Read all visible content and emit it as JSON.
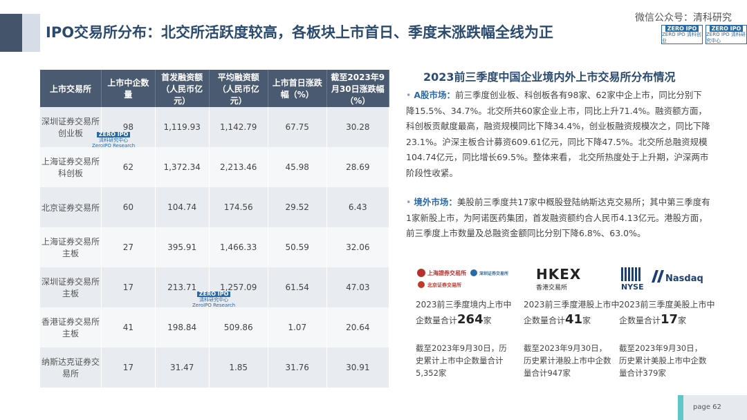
{
  "title": "IPO交易所分布：北交所活跃度较高，各板块上市首日、季度末涨跌幅全线为正",
  "wechat": "微信公众号：清科研究",
  "logos": [
    "ZERO IPO 清科创业",
    "ZERO IPO 清科研究中心"
  ],
  "table": {
    "headers": [
      "上市交易所",
      "上市中企数量",
      "首发融资额（人民币亿元）",
      "平均融资额（人民币亿元）",
      "上市首日涨跌幅（%）",
      "截至2023年9月30日涨跌幅（%）"
    ],
    "rows": [
      [
        "深圳证券交易所创业板",
        "98",
        "1,119.93",
        "1,142.79",
        "67.75",
        "30.28"
      ],
      [
        "上海证券交易所科创板",
        "62",
        "1,372.34",
        "2,213.46",
        "45.98",
        "28.69"
      ],
      [
        "北京证券交易所",
        "60",
        "104.74",
        "174.56",
        "29.52",
        "6.43"
      ],
      [
        "上海证券交易所主板",
        "27",
        "395.91",
        "1,466.33",
        "50.59",
        "32.06"
      ],
      [
        "深圳证券交易所主板",
        "17",
        "213.71",
        "1,257.09",
        "61.54",
        "47.03"
      ],
      [
        "香港证券交易所主板",
        "41",
        "198.84",
        "509.86",
        "1.07",
        "20.64"
      ],
      [
        "纳斯达克证券交易所",
        "17",
        "31.47",
        "1.85",
        "31.76",
        "30.91"
      ]
    ]
  },
  "watermark": {
    "brand": "ZERO IPO",
    "name": "清科研究中心",
    "sub": "ZeroIPO Research"
  },
  "right": {
    "heading": "2023前三季度中国企业境内外上市交易所分布情况",
    "a_label": "A股市场：",
    "a_text": "前三季度创业板、科创板各有98家、62家中企上市，同比分别下降15.5%、34.7%。北交所共60家企业上市，同比上升71.4%。融资额方面，科创板贡献度最高，融资规模同比下降34.4%，创业板融资规模次之，同比下降23.1%。沪深主板合计募资609.61亿元，同比下降47.5%。北交所总融资规模104.74亿元，同比增长69.5%。整体来看， 北交所热度处于上升期，沪深两市阶段性收紧。",
    "o_label": "境外市场：",
    "o_text": "美股前三季度共17家中概股登陆纳斯达克交易所；其中第三季度有1家新股上市，为阿诺医药集团，首发融资额约合人民币4.13亿元。港股方面，前三季度上市数量及总融资金额同比分别下降6.8%、63.0%。"
  },
  "exchanges": [
    {
      "logo": "上海證券交易所 深圳证券交易所 北京证券交易所",
      "stat_pre": "2023前三季度境内上市中企数量合计",
      "stat_num": "264",
      "stat_post": "家",
      "note": "截至2023年9月30日，历史累计上市中企数量合计5,352家"
    },
    {
      "logo": "HKEX 香港交易所",
      "stat_pre": "2023前三季度港股上市中企数量合计",
      "stat_num": "41",
      "stat_post": "家",
      "note": "截至2023年9月30日，历史累计港股上市中企数量合计947家"
    },
    {
      "logo": "NYSE Nasdaq",
      "stat_pre": "2023前三季度美股上市中企数量合计",
      "stat_num": "17",
      "stat_post": "家",
      "note": "截至2023年9月30日，历史累计美股上市中企数量合计379家"
    }
  ],
  "page": "page  62",
  "colors": {
    "accent": "#2b4a6f",
    "table_header": "#4a5a70",
    "teal": "#5fc7c9"
  }
}
